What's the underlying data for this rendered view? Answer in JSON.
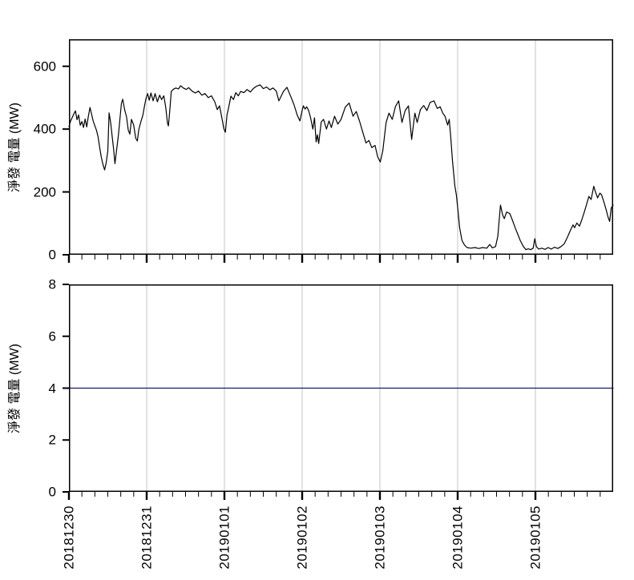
{
  "figure": {
    "background": "#ffffff",
    "description": "Two vertically stacked time-series line charts of net power generation (MW), 2018-12-30 through 2019-01-05"
  },
  "colors": {
    "axis": "#000000",
    "grid": "#c6c6c6",
    "series_top": "#000000",
    "series_bottom": "#191970",
    "background": "#ffffff",
    "text": "#000000"
  },
  "x_axis": {
    "tick_labels": [
      "20181230",
      "20181231",
      "20190101",
      "20190102",
      "20190103",
      "20190104",
      "20190105"
    ],
    "tick_hours": [
      0,
      24,
      48,
      72,
      96,
      120,
      144
    ],
    "minor_tick_every_hours": 4,
    "label_rotation_deg": -90
  },
  "chart_data": [
    {
      "type": "line",
      "title": "",
      "xlabel": "",
      "ylabel": "淨發 電量 (MW)",
      "x_unit": "hours since 2018-12-30 00:00",
      "xlim": [
        0,
        168
      ],
      "ylim": [
        0,
        686
      ],
      "yticks": [
        0,
        200,
        400,
        600
      ],
      "x_tick_hours": [
        0,
        24,
        48,
        72,
        96,
        120,
        144
      ],
      "x_tick_labels": [
        "20181230",
        "20181231",
        "20190101",
        "20190102",
        "20190103",
        "20190104",
        "20190105"
      ],
      "x_major_hours": 24,
      "x_minor_hours": 4,
      "grid": "vertical day gridlines",
      "legend": "none",
      "line_color": "#000000",
      "points": [
        [
          0,
          408
        ],
        [
          0.5,
          425
        ],
        [
          1.5,
          448
        ],
        [
          2,
          458
        ],
        [
          2.5,
          430
        ],
        [
          3,
          445
        ],
        [
          3.5,
          412
        ],
        [
          4,
          424
        ],
        [
          4.5,
          405
        ],
        [
          5,
          432
        ],
        [
          5.5,
          407
        ],
        [
          6,
          442
        ],
        [
          6.5,
          469
        ],
        [
          7,
          447
        ],
        [
          7.5,
          425
        ],
        [
          8.5,
          396
        ],
        [
          9,
          375
        ],
        [
          9.5,
          341
        ],
        [
          10,
          310
        ],
        [
          10.5,
          288
        ],
        [
          11,
          270
        ],
        [
          11.5,
          293
        ],
        [
          12,
          330
        ],
        [
          12.4,
          452
        ],
        [
          12.9,
          420
        ],
        [
          13.3,
          380
        ],
        [
          13.8,
          335
        ],
        [
          14.2,
          290
        ],
        [
          14.8,
          340
        ],
        [
          15.3,
          382
        ],
        [
          15.8,
          440
        ],
        [
          16.2,
          482
        ],
        [
          16.6,
          495
        ],
        [
          17.2,
          462
        ],
        [
          17.8,
          439
        ],
        [
          18.3,
          397
        ],
        [
          18.8,
          384
        ],
        [
          19.3,
          431
        ],
        [
          20,
          413
        ],
        [
          20.6,
          371
        ],
        [
          21.1,
          362
        ],
        [
          21.6,
          400
        ],
        [
          22.2,
          423
        ],
        [
          22.8,
          444
        ],
        [
          23.4,
          478
        ],
        [
          23.8,
          498
        ],
        [
          24.3,
          513
        ],
        [
          24.8,
          492
        ],
        [
          25.3,
          515
        ],
        [
          26,
          490
        ],
        [
          26.6,
          513
        ],
        [
          27.3,
          487
        ],
        [
          28,
          508
        ],
        [
          28.6,
          494
        ],
        [
          29.3,
          506
        ],
        [
          29.9,
          469
        ],
        [
          30.4,
          420
        ],
        [
          30.7,
          410
        ],
        [
          31.1,
          455
        ],
        [
          31.6,
          520
        ],
        [
          32.3,
          527
        ],
        [
          33,
          531
        ],
        [
          33.8,
          528
        ],
        [
          34.5,
          538
        ],
        [
          35.3,
          531
        ],
        [
          36.2,
          526
        ],
        [
          37,
          532
        ],
        [
          38,
          521
        ],
        [
          39,
          515
        ],
        [
          40,
          521
        ],
        [
          41,
          508
        ],
        [
          42,
          513
        ],
        [
          43,
          500
        ],
        [
          44,
          506
        ],
        [
          45,
          487
        ],
        [
          45.8,
          462
        ],
        [
          46.5,
          474
        ],
        [
          47.2,
          436
        ],
        [
          47.8,
          402
        ],
        [
          48.3,
          390
        ],
        [
          48.8,
          445
        ],
        [
          49.3,
          469
        ],
        [
          50,
          505
        ],
        [
          50.8,
          494
        ],
        [
          51.5,
          516
        ],
        [
          52.3,
          506
        ],
        [
          53,
          520
        ],
        [
          54,
          516
        ],
        [
          55,
          526
        ],
        [
          56,
          518
        ],
        [
          57,
          530
        ],
        [
          58,
          537
        ],
        [
          59,
          541
        ],
        [
          60,
          529
        ],
        [
          61,
          534
        ],
        [
          62,
          525
        ],
        [
          63,
          531
        ],
        [
          64,
          521
        ],
        [
          64.8,
          490
        ],
        [
          65.3,
          500
        ],
        [
          66.2,
          520
        ],
        [
          67.3,
          533
        ],
        [
          68.5,
          503
        ],
        [
          69.5,
          477
        ],
        [
          70.5,
          444
        ],
        [
          71.3,
          426
        ],
        [
          72,
          460
        ],
        [
          72.4,
          474
        ],
        [
          72.9,
          464
        ],
        [
          73.4,
          471
        ],
        [
          74,
          459
        ],
        [
          74.6,
          436
        ],
        [
          75.3,
          400
        ],
        [
          75.8,
          436
        ],
        [
          76.3,
          359
        ],
        [
          76.7,
          382
        ],
        [
          77.1,
          354
        ],
        [
          77.9,
          423
        ],
        [
          78.6,
          431
        ],
        [
          79.5,
          400
        ],
        [
          80.3,
          426
        ],
        [
          81,
          405
        ],
        [
          82,
          441
        ],
        [
          83,
          416
        ],
        [
          84,
          431
        ],
        [
          85.3,
          470
        ],
        [
          86.5,
          483
        ],
        [
          87.7,
          441
        ],
        [
          88.7,
          456
        ],
        [
          89.7,
          426
        ],
        [
          90.7,
          390
        ],
        [
          91.7,
          356
        ],
        [
          92.6,
          364
        ],
        [
          93.5,
          341
        ],
        [
          94.5,
          348
        ],
        [
          95.3,
          312
        ],
        [
          96.1,
          295
        ],
        [
          96.9,
          331
        ],
        [
          97.9,
          421
        ],
        [
          98.8,
          451
        ],
        [
          99.8,
          431
        ],
        [
          100.8,
          472
        ],
        [
          101.8,
          490
        ],
        [
          102.8,
          421
        ],
        [
          103.8,
          459
        ],
        [
          104.8,
          474
        ],
        [
          105.8,
          367
        ],
        [
          106.8,
          451
        ],
        [
          107.5,
          421
        ],
        [
          108.5,
          462
        ],
        [
          109.5,
          475
        ],
        [
          110.5,
          459
        ],
        [
          111.5,
          485
        ],
        [
          112.7,
          490
        ],
        [
          113.7,
          466
        ],
        [
          114.6,
          471
        ],
        [
          115.4,
          451
        ],
        [
          116.1,
          441
        ],
        [
          116.9,
          413
        ],
        [
          117.4,
          431
        ],
        [
          117.9,
          370
        ],
        [
          118.4,
          300
        ],
        [
          119.1,
          221
        ],
        [
          119.6,
          190
        ],
        [
          120.1,
          141
        ],
        [
          120.6,
          87
        ],
        [
          121.3,
          46
        ],
        [
          122.1,
          31
        ],
        [
          122.9,
          23
        ],
        [
          124,
          21
        ],
        [
          125.3,
          23
        ],
        [
          126.5,
          20
        ],
        [
          127.7,
          23
        ],
        [
          129,
          21
        ],
        [
          129.9,
          33
        ],
        [
          130.7,
          22
        ],
        [
          131.7,
          26
        ],
        [
          132.4,
          59
        ],
        [
          133.2,
          158
        ],
        [
          133.9,
          126
        ],
        [
          134.4,
          115
        ],
        [
          135.1,
          136
        ],
        [
          136.1,
          131
        ],
        [
          136.9,
          110
        ],
        [
          137.8,
          85
        ],
        [
          138.6,
          64
        ],
        [
          139.3,
          46
        ],
        [
          140.3,
          26
        ],
        [
          141.1,
          16
        ],
        [
          141.8,
          19
        ],
        [
          142.5,
          16
        ],
        [
          143.3,
          21
        ],
        [
          143.8,
          51
        ],
        [
          144.3,
          26
        ],
        [
          145,
          18
        ],
        [
          146,
          21
        ],
        [
          147,
          17
        ],
        [
          147.9,
          23
        ],
        [
          148.9,
          18
        ],
        [
          149.9,
          24
        ],
        [
          150.9,
          20
        ],
        [
          151.9,
          26
        ],
        [
          152.9,
          35
        ],
        [
          153.9,
          56
        ],
        [
          154.8,
          78
        ],
        [
          155.6,
          95
        ],
        [
          156.1,
          86
        ],
        [
          156.8,
          101
        ],
        [
          157.6,
          91
        ],
        [
          158.3,
          111
        ],
        [
          159.1,
          136
        ],
        [
          159.8,
          161
        ],
        [
          160.5,
          186
        ],
        [
          161.2,
          176
        ],
        [
          162,
          218
        ],
        [
          162.5,
          201
        ],
        [
          163.2,
          181
        ],
        [
          163.9,
          196
        ],
        [
          164.4,
          191
        ],
        [
          165.2,
          166
        ],
        [
          165.9,
          141
        ],
        [
          166.4,
          121
        ],
        [
          166.9,
          106
        ],
        [
          167.4,
          149
        ],
        [
          168,
          158
        ]
      ]
    },
    {
      "type": "line",
      "title": "",
      "xlabel": "",
      "ylabel": "淨發 電量 (MW)",
      "x_unit": "hours since 2018-12-30 00:00",
      "xlim": [
        0,
        168
      ],
      "ylim": [
        0,
        8
      ],
      "yticks": [
        0,
        2,
        4,
        6,
        8
      ],
      "x_tick_hours": [
        0,
        24,
        48,
        72,
        96,
        120,
        144
      ],
      "x_tick_labels": [
        "20181230",
        "20181231",
        "20190101",
        "20190102",
        "20190103",
        "20190104",
        "20190105"
      ],
      "x_major_hours": 24,
      "x_minor_hours": 4,
      "grid": "vertical day gridlines",
      "legend": "none",
      "line_color": "#191970",
      "points": [
        [
          0,
          4
        ],
        [
          168,
          4
        ]
      ]
    }
  ]
}
